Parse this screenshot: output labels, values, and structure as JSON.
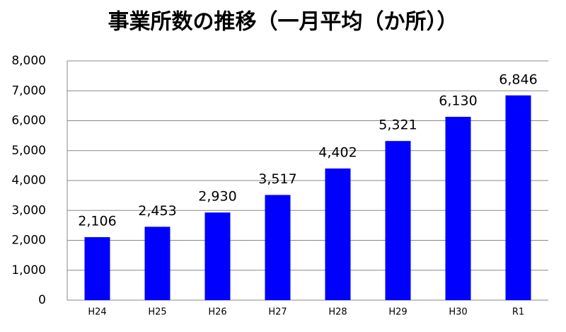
{
  "chart_data": {
    "type": "bar",
    "title": "事業所数の推移（一月平均（か所））",
    "categories": [
      "H24",
      "H25",
      "H26",
      "H27",
      "H28",
      "H29",
      "H30",
      "R1"
    ],
    "values": [
      2106,
      2453,
      2930,
      3517,
      4402,
      5321,
      6130,
      6846
    ],
    "value_labels": [
      "2,106",
      "2,453",
      "2,930",
      "3,517",
      "4,402",
      "5,321",
      "6,130",
      "6,846"
    ],
    "color": "#0000ff",
    "ylim": [
      0,
      8000
    ],
    "yticks": [
      0,
      {
        "value": 1000,
        "label": "1,000"
      },
      {
        "value": 2000,
        "label": "2,000"
      },
      {
        "value": 3000,
        "label": "3,000"
      },
      {
        "value": 4000,
        "label": "4,000"
      },
      {
        "value": 5000,
        "label": "5,000"
      },
      {
        "value": 6000,
        "label": "6,000"
      },
      {
        "value": 7000,
        "label": "7,000"
      },
      {
        "value": 8000,
        "label": "8,000"
      }
    ],
    "grid": true
  }
}
